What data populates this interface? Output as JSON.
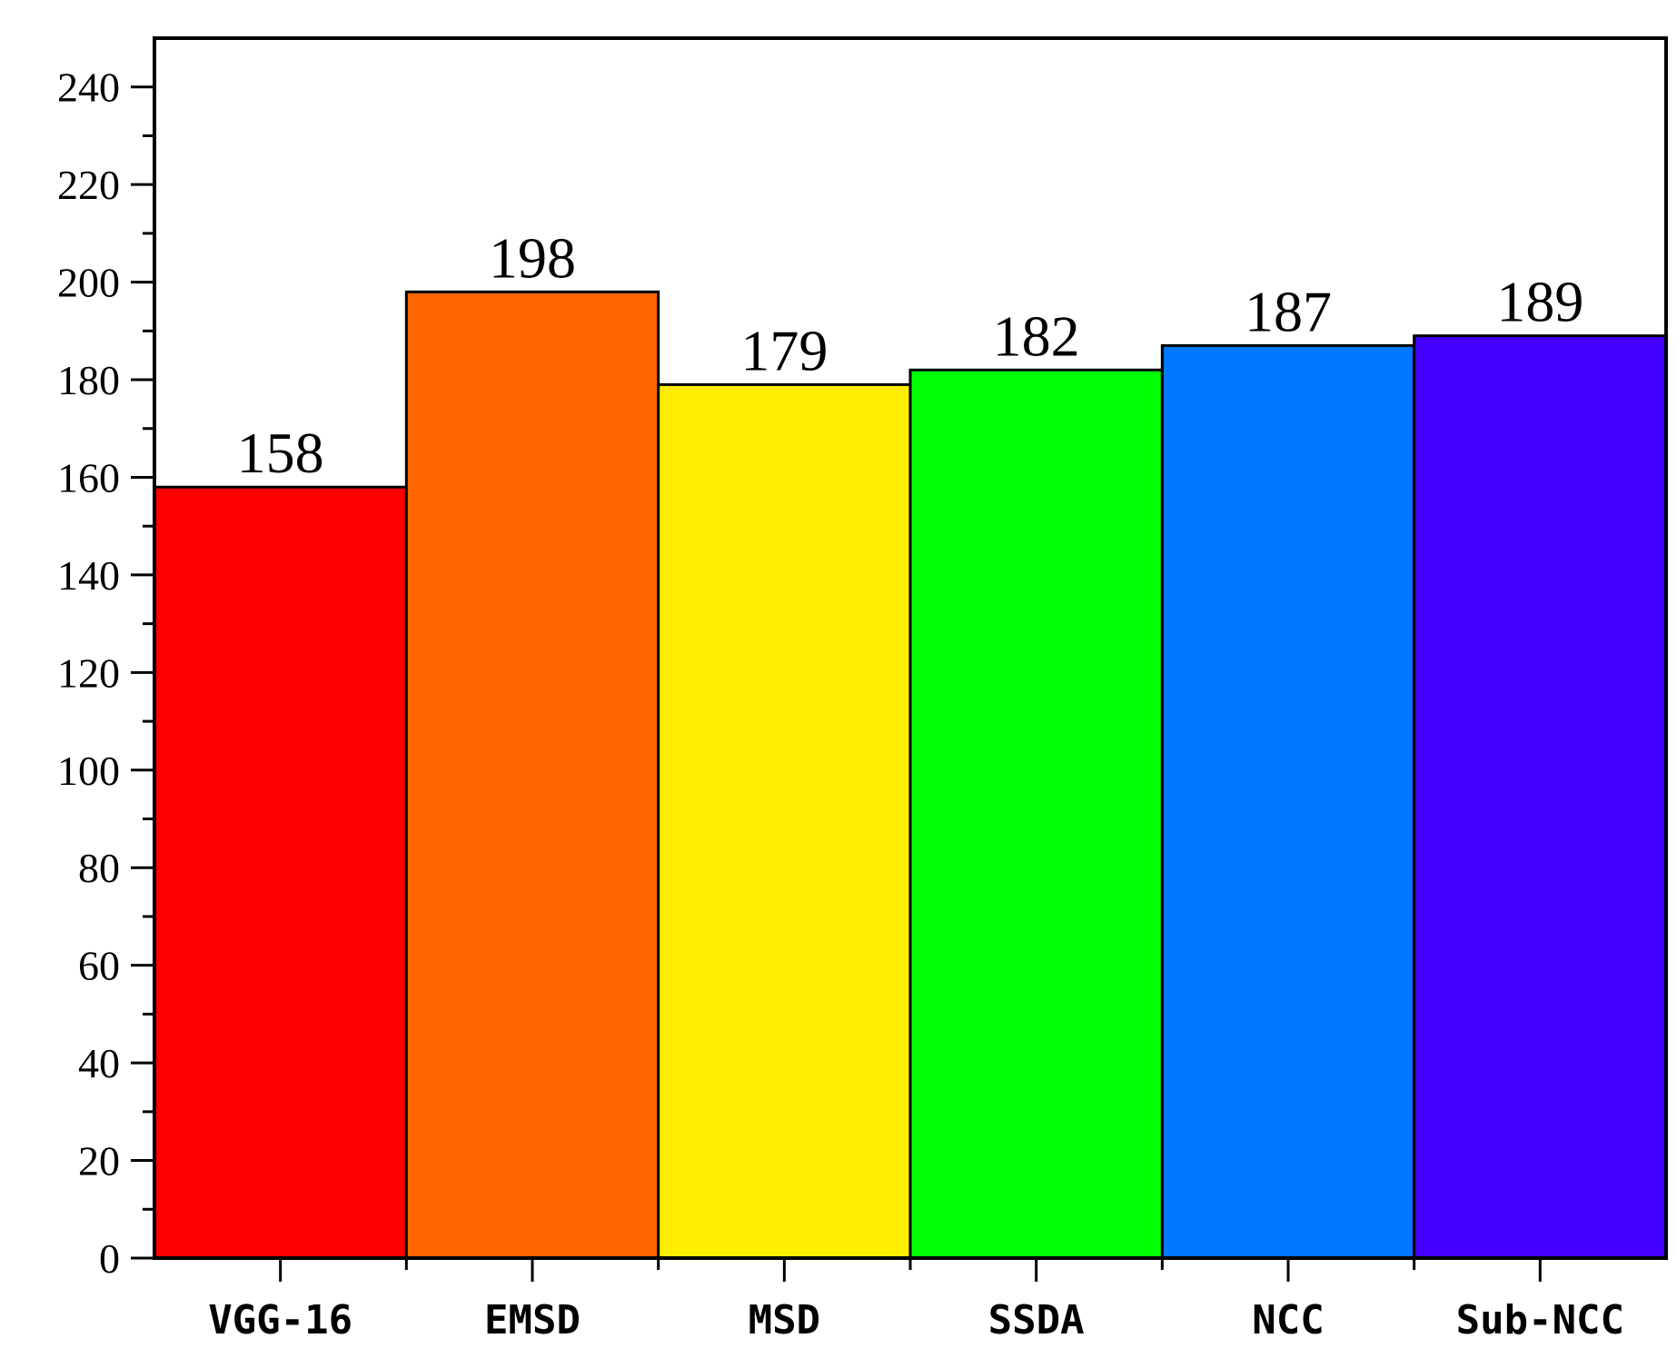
{
  "chart_data": {
    "type": "bar",
    "title": "",
    "xlabel": "",
    "ylabel": "",
    "categories": [
      "VGG-16",
      "EMSD",
      "MSD",
      "SSDA",
      "NCC",
      "Sub-NCC"
    ],
    "values": [
      158,
      198,
      179,
      182,
      187,
      189
    ],
    "data_labels": [
      "158",
      "198",
      "179",
      "182",
      "187",
      "189"
    ],
    "colors": [
      "#ff0000",
      "#ff6600",
      "#ffee00",
      "#00ff00",
      "#0077ff",
      "#4400ff"
    ],
    "ylim": [
      0,
      250
    ],
    "yticks": [
      0,
      20,
      40,
      60,
      80,
      100,
      120,
      140,
      160,
      180,
      200,
      220,
      240
    ],
    "ytick_labels": [
      "0",
      "20",
      "40",
      "60",
      "80",
      "100",
      "120",
      "140",
      "160",
      "180",
      "200",
      "220",
      "240"
    ],
    "minor_tick_step": 10,
    "grid": false,
    "legend": "none"
  }
}
